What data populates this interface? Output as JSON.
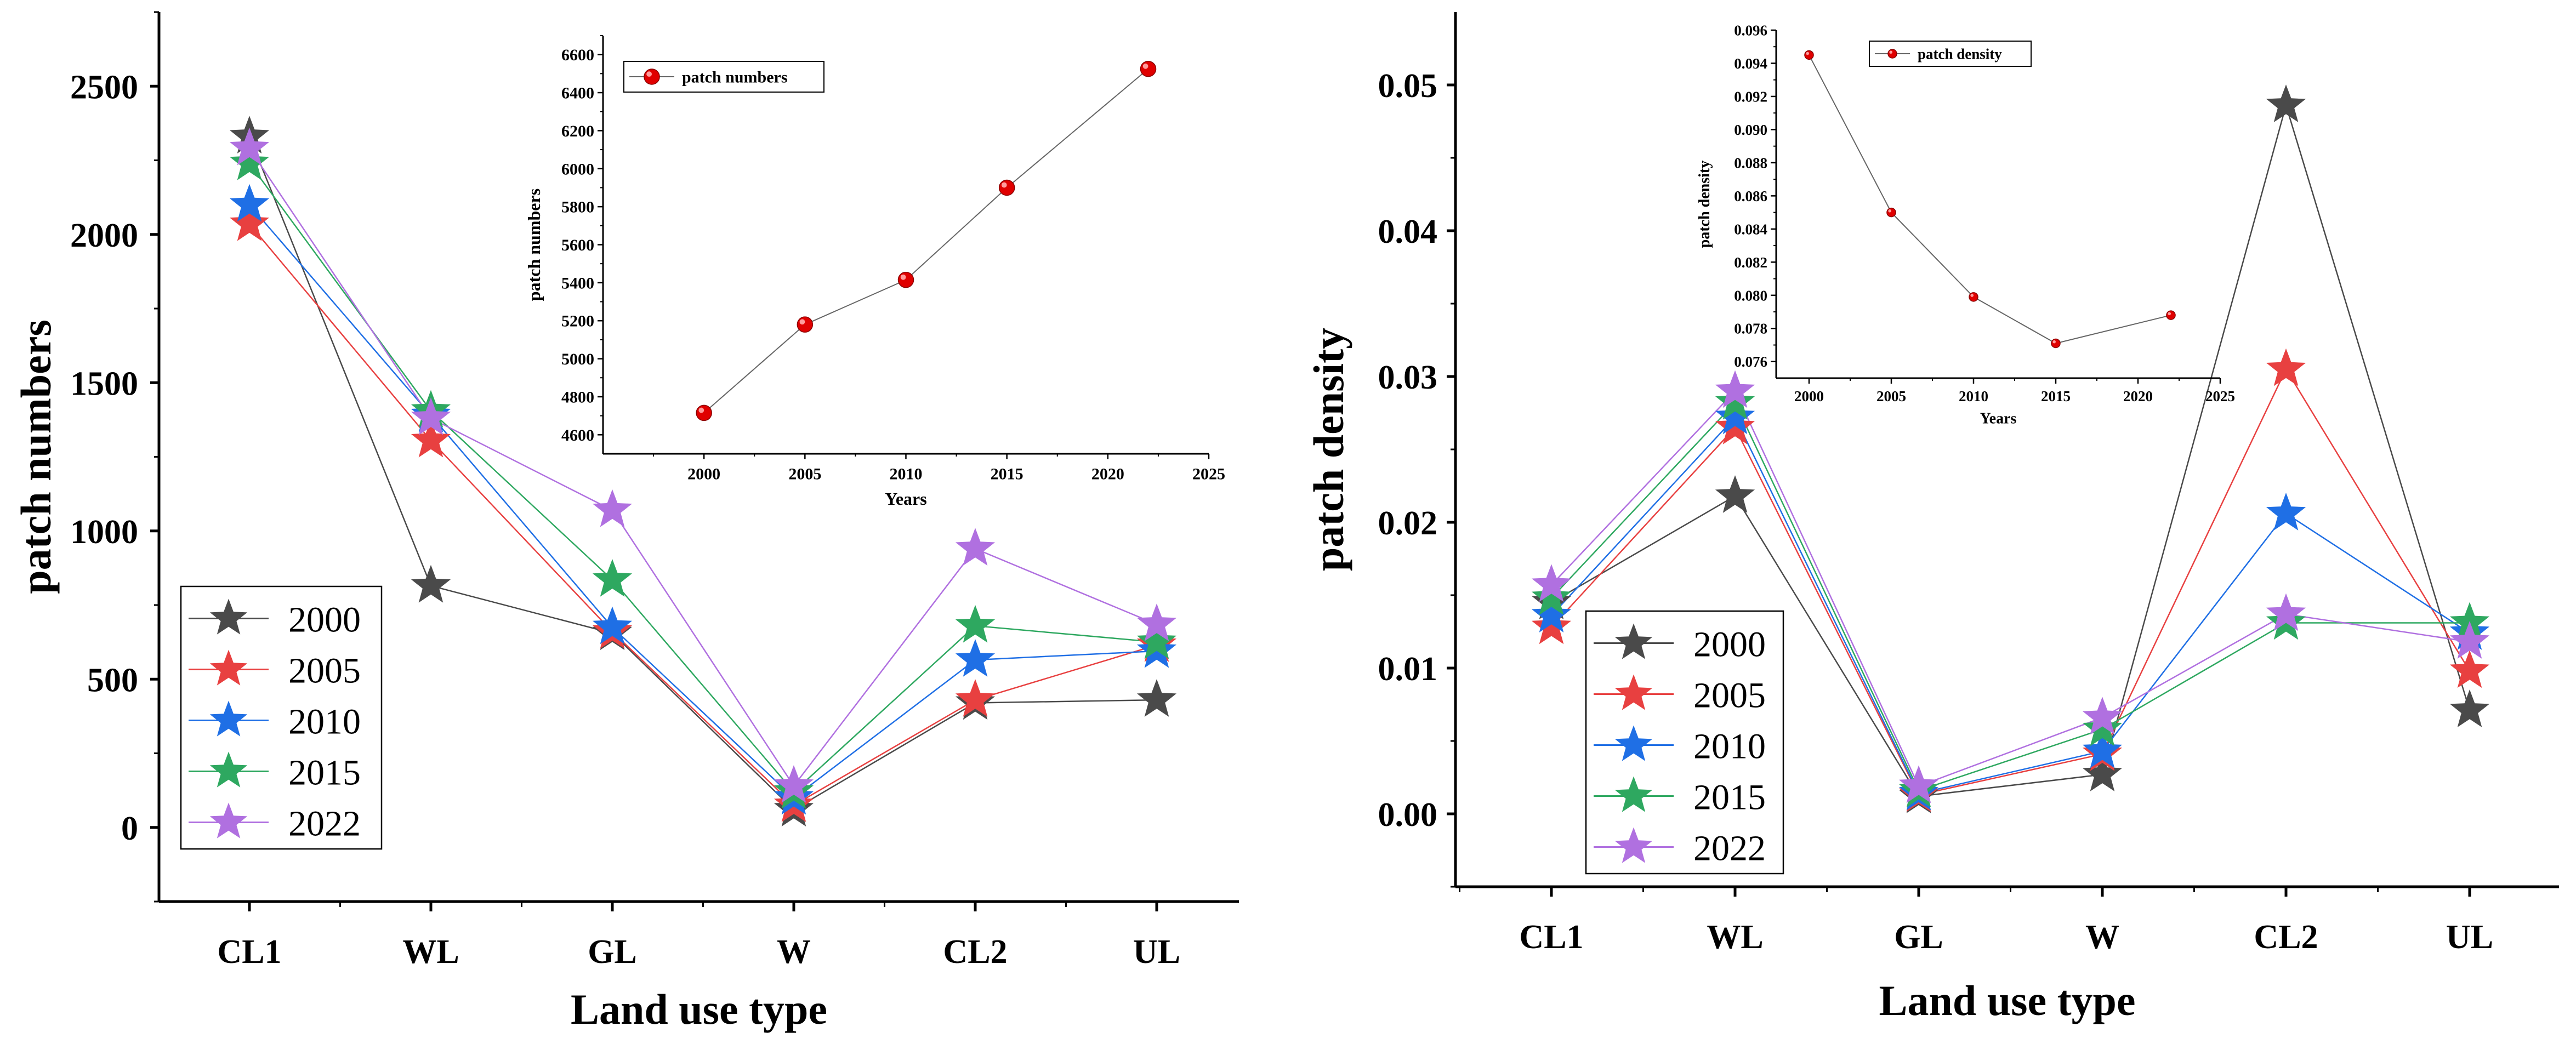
{
  "chart_data": [
    {
      "type": "line",
      "panel": "left",
      "categories": [
        "CL1",
        "WL",
        "GL",
        "W",
        "CL2",
        "UL"
      ],
      "xlabel": "Land use type",
      "ylabel": "patch numbers",
      "ylim": [
        -250,
        2750
      ],
      "yticks": [
        0,
        500,
        1000,
        1500,
        2000,
        2500
      ],
      "ytick_labels": [
        "0",
        "500",
        "1000",
        "1500",
        "2000",
        "2500"
      ],
      "legend_position": "bottom-left",
      "series": [
        {
          "name": "2000",
          "color": "#4a4a4a",
          "values": [
            2330,
            815,
            655,
            60,
            420,
            430
          ]
        },
        {
          "name": "2005",
          "color": "#e84040",
          "values": [
            2035,
            1305,
            660,
            75,
            430,
            615
          ]
        },
        {
          "name": "2010",
          "color": "#1f6fe5",
          "values": [
            2100,
            1390,
            675,
            100,
            565,
            595
          ]
        },
        {
          "name": "2015",
          "color": "#2ea860",
          "values": [
            2240,
            1405,
            835,
            120,
            680,
            625
          ]
        },
        {
          "name": "2022",
          "color": "#b070e0",
          "values": [
            2290,
            1380,
            1070,
            140,
            940,
            685
          ]
        }
      ]
    },
    {
      "type": "line",
      "panel": "left-inset",
      "x": [
        2000,
        2005,
        2010,
        2015,
        2022
      ],
      "values": [
        4715,
        5180,
        5415,
        5900,
        6525
      ],
      "series_name": "patch numbers",
      "xlabel": "Years",
      "ylabel": "patch numbers",
      "xlim": [
        1995,
        2025
      ],
      "ylim": [
        4500,
        6700
      ],
      "xticks": [
        2000,
        2005,
        2010,
        2015,
        2020,
        2025
      ],
      "xtick_labels": [
        "2000",
        "2005",
        "2010",
        "2015",
        "2020",
        "2025"
      ],
      "yticks": [
        4600,
        4800,
        5000,
        5200,
        5400,
        5600,
        5800,
        6000,
        6200,
        6400,
        6600
      ],
      "ytick_labels": [
        "4600",
        "4800",
        "5000",
        "5200",
        "5400",
        "5600",
        "5800",
        "6000",
        "6200",
        "6400",
        "6600"
      ],
      "legend_position": "top-left",
      "marker_color": "#e00000",
      "line_color": "#666666"
    },
    {
      "type": "line",
      "panel": "right",
      "categories": [
        "CL1",
        "WL",
        "GL",
        "W",
        "CL2",
        "UL"
      ],
      "xlabel": "Land use type",
      "ylabel": "patch density",
      "ylim": [
        -0.005,
        0.055
      ],
      "yticks": [
        0,
        0.01,
        0.02,
        0.03,
        0.04,
        0.05
      ],
      "ytick_labels": [
        "0.00",
        "0.01",
        "0.02",
        "0.03",
        "0.04",
        "0.05"
      ],
      "legend_position": "bottom-left",
      "series": [
        {
          "name": "2000",
          "color": "#4a4a4a",
          "values": [
            0.0145,
            0.0218,
            0.0012,
            0.0027,
            0.0486,
            0.0071
          ]
        },
        {
          "name": "2005",
          "color": "#e84040",
          "values": [
            0.0128,
            0.0265,
            0.0013,
            0.0041,
            0.0305,
            0.0098
          ]
        },
        {
          "name": "2010",
          "color": "#1f6fe5",
          "values": [
            0.0136,
            0.0272,
            0.0014,
            0.0043,
            0.0206,
            0.0124
          ]
        },
        {
          "name": "2015",
          "color": "#2ea860",
          "values": [
            0.0148,
            0.0282,
            0.0016,
            0.0058,
            0.0131,
            0.0131
          ]
        },
        {
          "name": "2022",
          "color": "#b070e0",
          "values": [
            0.0157,
            0.029,
            0.0019,
            0.0066,
            0.0137,
            0.0118
          ]
        }
      ]
    },
    {
      "type": "line",
      "panel": "right-inset",
      "x": [
        2000,
        2005,
        2010,
        2015,
        2022
      ],
      "values": [
        0.0945,
        0.085,
        0.0799,
        0.0771,
        0.0788
      ],
      "series_name": "patch density",
      "xlabel": "Years",
      "ylabel": "patch density",
      "xlim": [
        1998,
        2025
      ],
      "ylim": [
        0.075,
        0.096
      ],
      "xticks": [
        2000,
        2005,
        2010,
        2015,
        2020,
        2025
      ],
      "xtick_labels": [
        "2000",
        "2005",
        "2010",
        "2015",
        "2020",
        "2025"
      ],
      "yticks": [
        0.076,
        0.078,
        0.08,
        0.082,
        0.084,
        0.086,
        0.088,
        0.09,
        0.092,
        0.094,
        0.096
      ],
      "ytick_labels": [
        "0.076",
        "0.078",
        "0.080",
        "0.082",
        "0.084",
        "0.086",
        "0.088",
        "0.090",
        "0.092",
        "0.094",
        "0.096"
      ],
      "legend_position": "top-left",
      "marker_color": "#e00000",
      "line_color": "#666666"
    }
  ]
}
